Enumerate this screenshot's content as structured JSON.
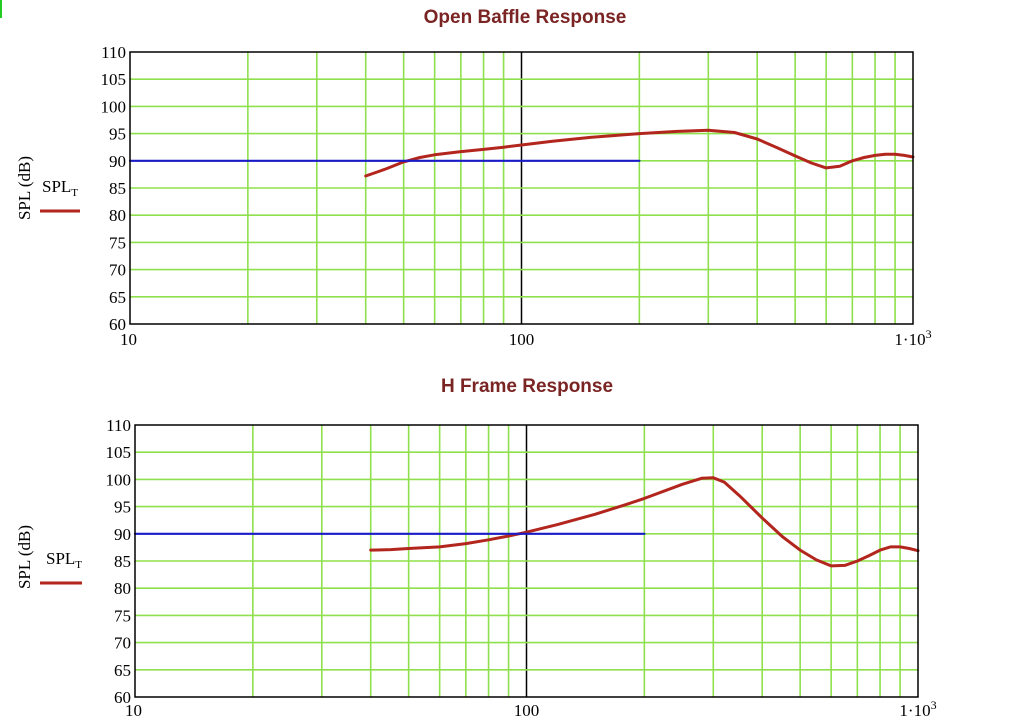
{
  "colors": {
    "grid": "#8ee04c",
    "axis": "#000000",
    "response": "#b2261e",
    "reference": "#1a1ac8",
    "title": "#7a2424",
    "frame": "#000000"
  },
  "chart_data": [
    {
      "type": "line",
      "title": "Open Baffle Response",
      "xlabel": "",
      "ylabel": "SPL (dB)",
      "xscale": "log",
      "xlim": [
        10,
        1000
      ],
      "ylim": [
        60,
        110
      ],
      "x_ticks": [
        "10",
        "100",
        "1·10³"
      ],
      "y_ticks": [
        "60",
        "65",
        "70",
        "75",
        "80",
        "85",
        "90",
        "95",
        "100",
        "105",
        "110"
      ],
      "grid": true,
      "legend": {
        "placement": "left",
        "label": "SPL",
        "subscript": "T"
      },
      "series": [
        {
          "name": "SPL_T",
          "color": "#b2261e",
          "x": [
            40,
            45,
            50,
            55,
            60,
            70,
            80,
            90,
            100,
            120,
            150,
            200,
            250,
            300,
            350,
            400,
            450,
            500,
            550,
            600,
            650,
            700,
            750,
            800,
            850,
            900,
            950,
            1000
          ],
          "y": [
            87.2,
            88.5,
            89.8,
            90.6,
            91.1,
            91.7,
            92.1,
            92.5,
            92.9,
            93.6,
            94.3,
            95.0,
            95.4,
            95.6,
            95.2,
            94.0,
            92.4,
            90.9,
            89.6,
            88.7,
            89.0,
            90.0,
            90.6,
            91.0,
            91.2,
            91.2,
            91.0,
            90.7
          ]
        },
        {
          "color": "#1a1ac8",
          "x": [
            10,
            200
          ],
          "y": [
            90,
            90
          ]
        }
      ]
    },
    {
      "type": "line",
      "title": "H Frame Response",
      "xlabel": "",
      "ylabel": "SPL (dB)",
      "xscale": "log",
      "xlim": [
        10,
        1000
      ],
      "ylim": [
        60,
        110
      ],
      "x_ticks": [
        "10",
        "100",
        "1·10³"
      ],
      "y_ticks": [
        "60",
        "65",
        "70",
        "75",
        "80",
        "85",
        "90",
        "95",
        "100",
        "105",
        "110"
      ],
      "grid": true,
      "legend": {
        "placement": "left",
        "label": "SPL",
        "subscript": "T"
      },
      "series": [
        {
          "name": "SPL_T",
          "color": "#b2261e",
          "x": [
            40,
            45,
            50,
            60,
            70,
            80,
            90,
            100,
            120,
            150,
            180,
            200,
            250,
            280,
            300,
            320,
            350,
            400,
            450,
            500,
            550,
            600,
            650,
            700,
            750,
            800,
            850,
            900,
            950,
            1000
          ],
          "y": [
            87.0,
            87.1,
            87.3,
            87.6,
            88.2,
            88.9,
            89.6,
            90.3,
            91.7,
            93.6,
            95.4,
            96.5,
            99.1,
            100.2,
            100.3,
            99.5,
            97.0,
            92.9,
            89.5,
            87.0,
            85.2,
            84.1,
            84.2,
            85.0,
            86.0,
            87.0,
            87.6,
            87.6,
            87.3,
            86.9
          ]
        },
        {
          "color": "#1a1ac8",
          "x": [
            10,
            200
          ],
          "y": [
            90,
            90
          ]
        }
      ]
    }
  ]
}
